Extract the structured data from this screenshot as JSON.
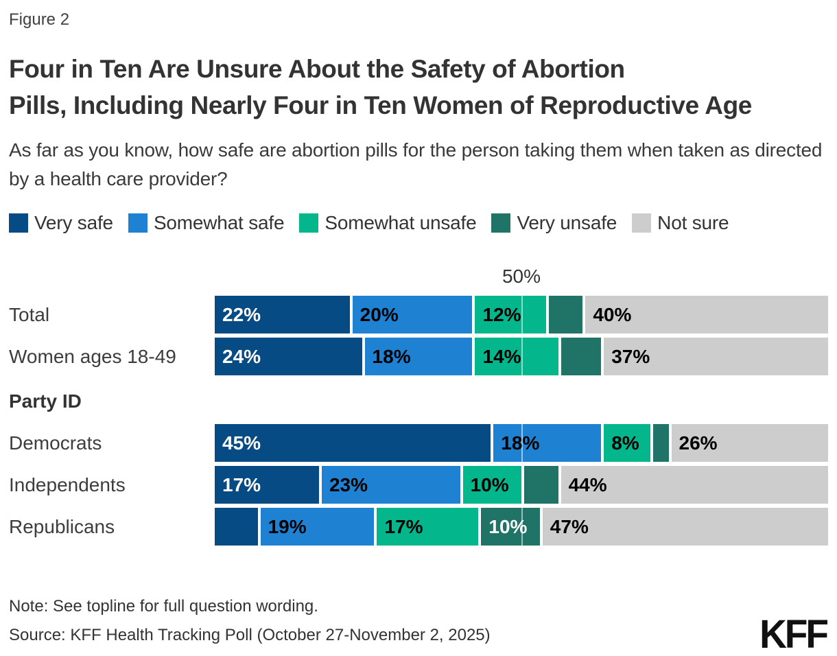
{
  "figure_label": "Figure 2",
  "title_lines": [
    "Four in Ten Are Unsure About the Safety of Abortion",
    "Pills, Including Nearly Four in Ten Women of Reproductive Age"
  ],
  "subtitle": "As far as you know, how safe are abortion pills for the person taking them when taken as directed by a health care provider?",
  "legend": [
    {
      "label": "Very safe",
      "color": "#074b84"
    },
    {
      "label": "Somewhat safe",
      "color": "#1e81d2"
    },
    {
      "label": "Somewhat unsafe",
      "color": "#03b68c"
    },
    {
      "label": "Very unsafe",
      "color": "#1f7467"
    },
    {
      "label": "Not sure",
      "color": "#cdcdcd"
    }
  ],
  "chart_data": {
    "type": "bar",
    "subtype": "horizontal_stacked",
    "title": "Four in Ten Are Unsure About the Safety of Abortion Pills, Including Nearly Four in Ten Women of Reproductive Age",
    "axis": {
      "min": 0,
      "max": 100,
      "tick_value": 50,
      "tick_label": "50%",
      "gridline": true
    },
    "series": [
      "Very safe",
      "Somewhat safe",
      "Somewhat unsafe",
      "Very unsafe",
      "Not sure"
    ],
    "series_label_text_colors": [
      "#ffffff",
      "#000000",
      "#000000",
      "#ffffff",
      "#000000"
    ],
    "rows": [
      {
        "label": "Total",
        "values": [
          22,
          20,
          12,
          6,
          40
        ],
        "labels": [
          "22%",
          "20%",
          "12%",
          "",
          "40%"
        ]
      },
      {
        "label": "Women ages 18-49",
        "values": [
          24,
          18,
          14,
          7,
          37
        ],
        "labels": [
          "24%",
          "18%",
          "14%",
          "",
          "37%"
        ]
      },
      {
        "heading": "Party ID"
      },
      {
        "label": "Democrats",
        "values": [
          45,
          18,
          8,
          3,
          26
        ],
        "labels": [
          "45%",
          "18%",
          "8%",
          "",
          "26%"
        ]
      },
      {
        "label": "Independents",
        "values": [
          17,
          23,
          10,
          6,
          44
        ],
        "labels": [
          "17%",
          "23%",
          "10%",
          "",
          "44%"
        ]
      },
      {
        "label": "Republicans",
        "values": [
          7,
          19,
          17,
          10,
          47
        ],
        "labels": [
          "",
          "19%",
          "17%",
          "10%",
          "47%"
        ]
      }
    ]
  },
  "note": "Note: See topline for full question wording.",
  "source": "Source: KFF Health Tracking Poll (October 27-November 2, 2025)",
  "logo_text": "KFF"
}
